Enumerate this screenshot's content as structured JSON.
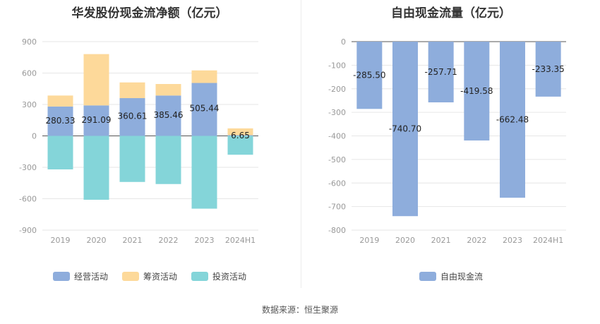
{
  "source": "数据来源：恒生聚源",
  "chart_data": [
    {
      "type": "bar",
      "stacked": true,
      "title": "华发股份现金流净额（亿元）",
      "categories": [
        "2019",
        "2020",
        "2021",
        "2022",
        "2023",
        "2024H1"
      ],
      "yticks": [
        900,
        600,
        300,
        0,
        -300,
        -600,
        -900
      ],
      "ylim": [
        -900,
        900
      ],
      "grid": true,
      "legend_position": "bottom",
      "series": [
        {
          "name": "经营活动",
          "color": "#8eaddc",
          "values": [
            280.33,
            291.09,
            360.61,
            385.46,
            505.44,
            6.65
          ]
        },
        {
          "name": "筹资活动",
          "color": "#fdd99a",
          "values": [
            105,
            490,
            150,
            110,
            120,
            65
          ]
        },
        {
          "name": "投资活动",
          "color": "#84d5d9",
          "values": [
            -320,
            -610,
            -440,
            -460,
            -695,
            -180
          ]
        }
      ],
      "data_labels": [
        "280.33",
        "291.09",
        "360.61",
        "385.46",
        "505.44",
        "6.65"
      ]
    },
    {
      "type": "bar",
      "title": "自由现金流量（亿元）",
      "categories": [
        "2019",
        "2020",
        "2021",
        "2022",
        "2023",
        "2024H1"
      ],
      "yticks": [
        0,
        -100,
        -200,
        -300,
        -400,
        -500,
        -600,
        -700,
        -800
      ],
      "ylim": [
        -800,
        0
      ],
      "grid": true,
      "legend_position": "bottom",
      "series": [
        {
          "name": "自由现金流",
          "color": "#8eaddc",
          "values": [
            -285.5,
            -740.7,
            -257.71,
            -419.58,
            -662.48,
            -233.35
          ]
        }
      ],
      "data_labels": [
        "-285.50",
        "-740.70",
        "-257.71",
        "-419.58",
        "-662.48",
        "-233.35"
      ]
    }
  ]
}
